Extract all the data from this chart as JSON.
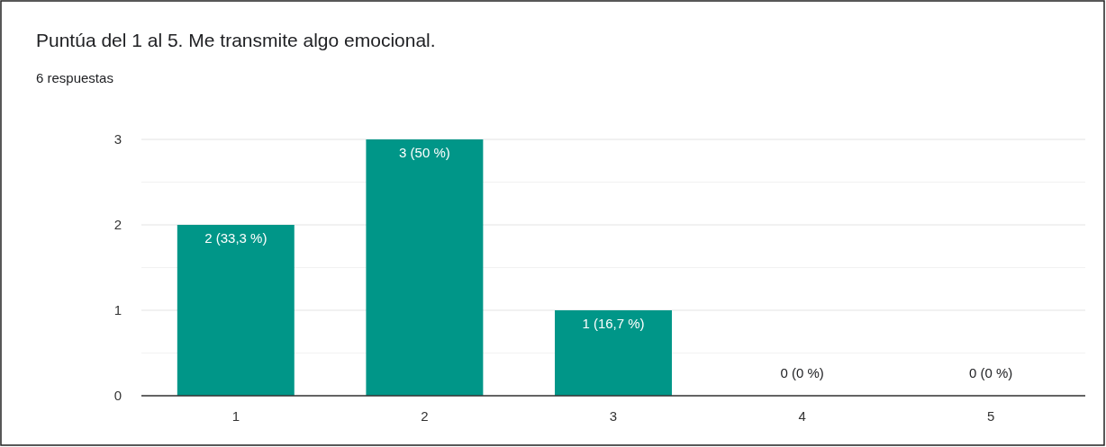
{
  "chart_data": {
    "type": "bar",
    "title": "Puntúa del 1 al 5. Me transmite algo emocional.",
    "subtitle": "6 respuestas",
    "categories": [
      "1",
      "2",
      "3",
      "4",
      "5"
    ],
    "values": [
      2,
      3,
      1,
      0,
      0
    ],
    "value_labels": [
      "2 (33,3 %)",
      "3 (50 %)",
      "1 (16,7 %)",
      "0 (0 %)",
      "0 (0 %)"
    ],
    "color": "#009688",
    "ylim": [
      0,
      3
    ],
    "yticks": [
      0,
      {
        "value": 0.5,
        "label": null
      },
      1,
      {
        "value": 1.5,
        "label": null
      },
      2,
      {
        "value": 2.5,
        "label": null
      },
      3
    ],
    "grid": "y"
  }
}
